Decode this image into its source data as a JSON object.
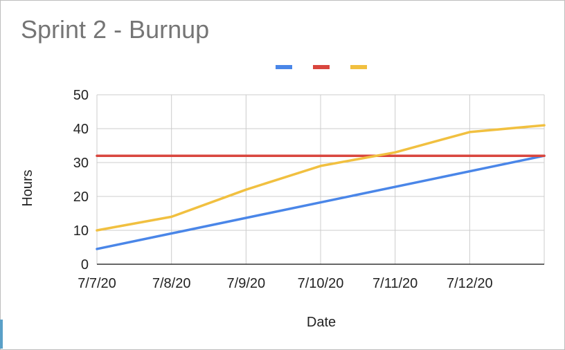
{
  "chart_data": {
    "type": "line",
    "title": "Sprint 2 - Burnup",
    "xlabel": "Date",
    "ylabel": "Hours",
    "x_ticks": [
      "7/7/20",
      "7/8/20",
      "7/9/20",
      "7/10/20",
      "7/11/20",
      "7/12/20"
    ],
    "x_range": [
      "7/7/20",
      "7/13/20"
    ],
    "ylim": [
      0,
      50
    ],
    "y_ticks": [
      0,
      10,
      20,
      30,
      40,
      50
    ],
    "grid": true,
    "legend_position": "top-center",
    "series": [
      {
        "color": "#4a86e8",
        "points": [
          [
            "7/7/20",
            4.5
          ],
          [
            "7/13/20",
            32
          ]
        ]
      },
      {
        "color": "#d9463e",
        "points": [
          [
            "7/7/20",
            32
          ],
          [
            "7/13/20",
            32
          ]
        ]
      },
      {
        "color": "#f1c040",
        "points": [
          [
            "7/7/20",
            10
          ],
          [
            "7/8/20",
            14
          ],
          [
            "7/9/20",
            22
          ],
          [
            "7/10/20",
            29
          ],
          [
            "7/11/20",
            33
          ],
          [
            "7/12/20",
            39
          ],
          [
            "7/13/20",
            41
          ]
        ]
      }
    ]
  }
}
